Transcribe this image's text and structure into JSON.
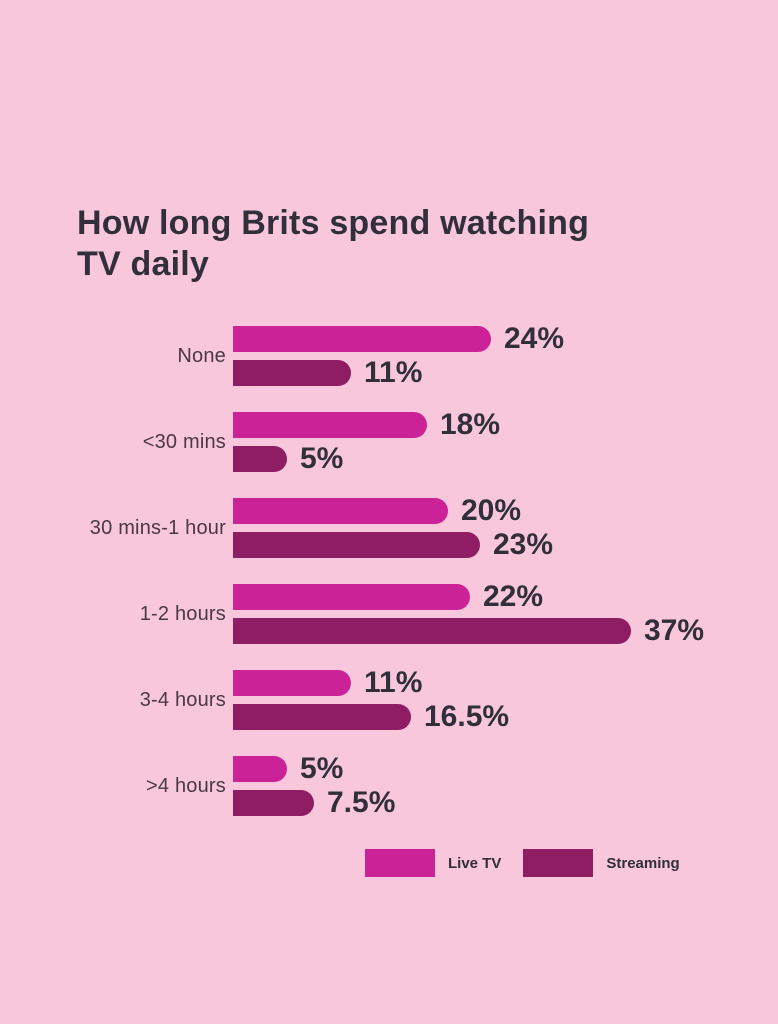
{
  "title": {
    "line1": "How long Brits spend watching",
    "line2": "TV daily"
  },
  "colors": {
    "background": "#F9C7DC",
    "live_tv": "#CB2397",
    "streaming": "#8E1D64",
    "title_text": "#312F3A",
    "label_text": "#4A3847",
    "value_text": "#312F3A"
  },
  "legend": [
    {
      "name": "Live TV",
      "color": "#CB2397"
    },
    {
      "name": "Streaming",
      "color": "#8E1D64"
    }
  ],
  "chart_data": {
    "type": "bar",
    "orientation": "horizontal",
    "title": "How long Brits spend watching TV daily",
    "categories": [
      "None",
      "<30 mins",
      "30 mins-1 hour",
      "1-2 hours",
      "3-4 hours",
      ">4 hours"
    ],
    "series": [
      {
        "name": "Live TV",
        "values": [
          24,
          18,
          20,
          22,
          11,
          5
        ],
        "labels": [
          "24%",
          "18%",
          "20%",
          "22%",
          "11%",
          "5%"
        ]
      },
      {
        "name": "Streaming",
        "values": [
          11,
          5,
          23,
          37,
          16.5,
          7.5
        ],
        "labels": [
          "11%",
          "5%",
          "23%",
          "37%",
          "16.5%",
          "7.5%"
        ]
      }
    ],
    "value_suffix": "%",
    "xlim": [
      0,
      40
    ],
    "grid": false,
    "legend_position": "bottom"
  }
}
